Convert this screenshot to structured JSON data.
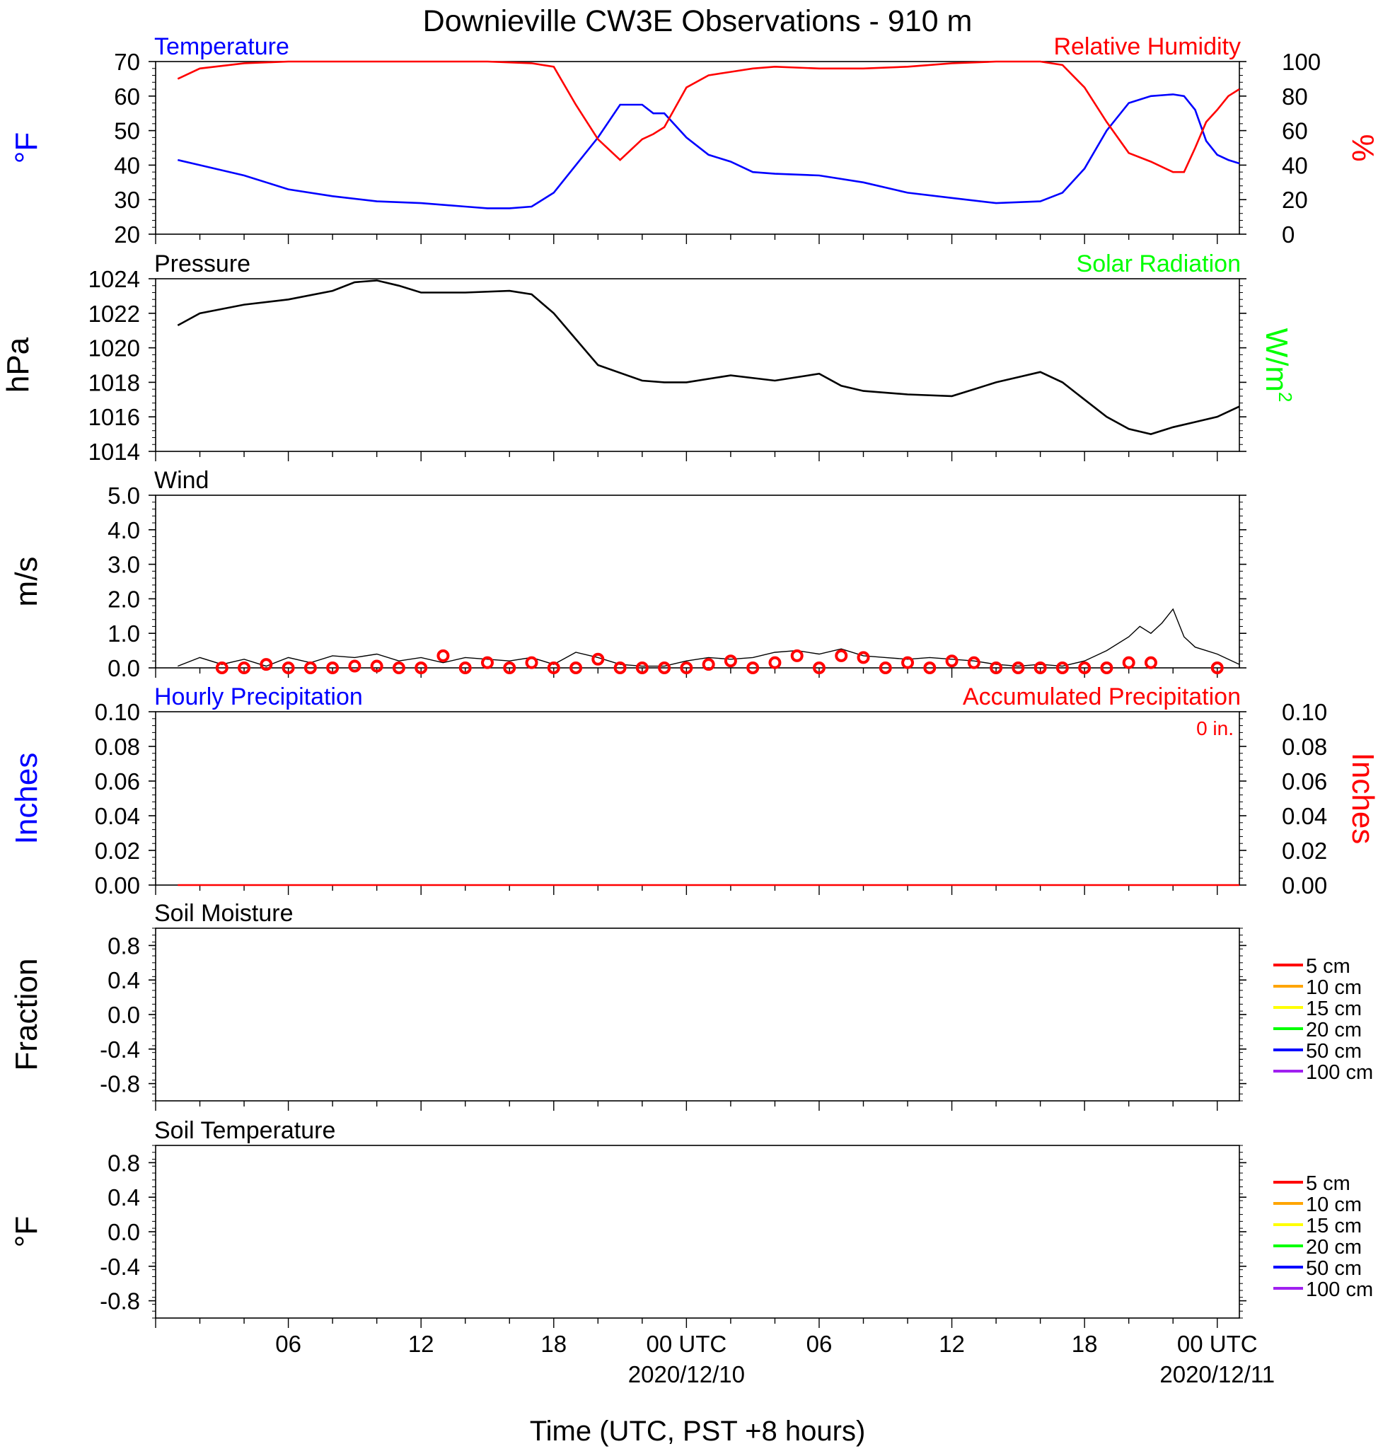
{
  "figure": {
    "title": "Downieville CW3E Observations - 910 m",
    "x_axis_label": "Time (UTC, PST +8 hours)",
    "x_tick_labels": [
      "06",
      "12",
      "18",
      "00 UTC",
      "06",
      "12",
      "18",
      "00 UTC"
    ],
    "x_date_labels": [
      "2020/12/10",
      "2020/12/11"
    ]
  },
  "colors": {
    "blue": "#0000ff",
    "red": "#ff0000",
    "green": "#00ff00",
    "black": "#000000"
  },
  "chart_data": [
    {
      "type": "line",
      "panel": "temperature-humidity",
      "left_title": "Temperature",
      "right_title": "Relative Humidity",
      "ylabel_left": "°F",
      "ylabel_right": "%",
      "ylim_left": [
        20,
        70
      ],
      "ylim_right": [
        0,
        100
      ],
      "yticks_left": [
        "70",
        "60",
        "50",
        "40",
        "30",
        "20"
      ],
      "yticks_right": [
        "100",
        "80",
        "60",
        "40",
        "20",
        "0"
      ],
      "x_hours": [
        1,
        2,
        4,
        6,
        8,
        10,
        12,
        14,
        15,
        16,
        17,
        18,
        19,
        20,
        21,
        22,
        22.5,
        23,
        24,
        25,
        26,
        27,
        28,
        30,
        32,
        34,
        36,
        38,
        40,
        41,
        42,
        43,
        44,
        45,
        46,
        46.5,
        47,
        47.5,
        48,
        48.5,
        49
      ],
      "series": [
        {
          "name": "Temperature",
          "axis": "left",
          "color": "#0000ff",
          "values": [
            41.5,
            40,
            37,
            33,
            31,
            29.5,
            29,
            28,
            27.5,
            27.5,
            28,
            32,
            40,
            48,
            57.5,
            57.5,
            55,
            55,
            48,
            43,
            41,
            38,
            37.5,
            37,
            35,
            32,
            30.5,
            29,
            29.5,
            32,
            39,
            50,
            58,
            60,
            60.5,
            60,
            56,
            47,
            43,
            41.5,
            40.5
          ]
        },
        {
          "name": "Relative Humidity",
          "axis": "right",
          "color": "#ff0000",
          "values": [
            90,
            96,
            99,
            100,
            100,
            100,
            100,
            100,
            100,
            99.5,
            99,
            97,
            75,
            55,
            43,
            55,
            58,
            62,
            85,
            92,
            94,
            96,
            97,
            96,
            96,
            97,
            99,
            100,
            100,
            98,
            85,
            65,
            47,
            42,
            36,
            36,
            50,
            65,
            72,
            80,
            84
          ]
        }
      ]
    },
    {
      "type": "line",
      "panel": "pressure",
      "left_title": "Pressure",
      "right_title": "Solar Radiation",
      "ylabel_left": "hPa",
      "ylabel_right": "W/m",
      "ylabel_right_sup": "2",
      "ylim_left": [
        1014,
        1024
      ],
      "yticks_left": [
        "1024",
        "1022",
        "1020",
        "1018",
        "1016",
        "1014"
      ],
      "x_hours": [
        1,
        2,
        4,
        6,
        8,
        9,
        10,
        11,
        12,
        14,
        16,
        17,
        18,
        19,
        20,
        22,
        23,
        24,
        26,
        28,
        30,
        31,
        32,
        34,
        36,
        37,
        38,
        39,
        40,
        41,
        42,
        43,
        44,
        45,
        46,
        47,
        48,
        49
      ],
      "series": [
        {
          "name": "Pressure",
          "axis": "left",
          "color": "#000000",
          "values": [
            1021.3,
            1022,
            1022.5,
            1022.8,
            1023.3,
            1023.8,
            1023.9,
            1023.6,
            1023.2,
            1023.2,
            1023.3,
            1023.1,
            1022,
            1020.5,
            1019,
            1018.1,
            1018,
            1018,
            1018.4,
            1018.1,
            1018.5,
            1017.8,
            1017.5,
            1017.3,
            1017.2,
            1017.6,
            1018,
            1018.3,
            1018.6,
            1018,
            1017,
            1016,
            1015.3,
            1015,
            1015.4,
            1015.7,
            1016,
            1016.6
          ]
        }
      ]
    },
    {
      "type": "line",
      "panel": "wind",
      "left_title": "Wind",
      "ylabel_left": "m/s",
      "ylim_left": [
        0,
        5
      ],
      "yticks_left": [
        "5.0",
        "4.0",
        "3.0",
        "2.0",
        "1.0",
        "0.0"
      ],
      "x_hours": [
        1,
        2,
        3,
        4,
        5,
        6,
        7,
        8,
        9,
        10,
        11,
        12,
        13,
        14,
        15,
        16,
        17,
        18,
        19,
        20,
        21,
        22,
        23,
        24,
        25,
        26,
        27,
        28,
        29,
        30,
        31,
        32,
        33,
        34,
        35,
        36,
        37,
        38,
        39,
        40,
        41,
        42,
        43,
        44,
        44.5,
        45,
        45.5,
        46,
        46.5,
        47,
        47.5,
        48,
        49
      ],
      "series": [
        {
          "name": "Wind speed",
          "axis": "left",
          "color": "#000000",
          "values": [
            0.05,
            0.3,
            0.1,
            0.25,
            0.05,
            0.3,
            0.15,
            0.35,
            0.3,
            0.4,
            0.2,
            0.3,
            0.15,
            0.3,
            0.25,
            0.2,
            0.3,
            0.1,
            0.45,
            0.3,
            0.1,
            0.05,
            0.05,
            0.2,
            0.3,
            0.25,
            0.3,
            0.45,
            0.5,
            0.4,
            0.55,
            0.35,
            0.3,
            0.25,
            0.3,
            0.25,
            0.2,
            0.1,
            0.05,
            0.1,
            0.05,
            0.2,
            0.5,
            0.9,
            1.2,
            1.0,
            1.3,
            1.7,
            0.9,
            0.6,
            0.5,
            0.4,
            0.1
          ]
        },
        {
          "name": "Hourly wind",
          "axis": "left",
          "color": "#ff0000",
          "marker": "circle",
          "x": [
            3,
            4,
            5,
            6,
            7,
            8,
            9,
            10,
            11,
            12,
            13,
            14,
            15,
            16,
            17,
            18,
            19,
            20,
            21,
            22,
            23,
            24,
            25,
            26,
            27,
            28,
            29,
            30,
            31,
            32,
            33,
            34,
            35,
            36,
            37,
            38,
            39,
            40,
            41,
            42,
            43,
            44,
            45,
            48
          ],
          "values": [
            0,
            0,
            0.1,
            0,
            0,
            0,
            0.05,
            0.05,
            0,
            0,
            0.35,
            0,
            0.15,
            0,
            0.15,
            0,
            0,
            0.25,
            0,
            0,
            0,
            0,
            0.1,
            0.2,
            0,
            0.15,
            0.35,
            0,
            0.35,
            0.3,
            0,
            0.15,
            0,
            0.2,
            0.15,
            0,
            0,
            0,
            0,
            0,
            0,
            0.15,
            0.15,
            0
          ]
        }
      ]
    },
    {
      "type": "line",
      "panel": "precipitation",
      "left_title": "Hourly Precipitation",
      "right_title": "Accumulated Precipitation",
      "annotation": "0 in.",
      "ylabel_left": "Inches",
      "ylabel_right": "Inches",
      "ylim_left": [
        0,
        0.1
      ],
      "ylim_right": [
        0,
        0.1
      ],
      "yticks_left": [
        "0.10",
        "0.08",
        "0.06",
        "0.04",
        "0.02",
        "0.00"
      ],
      "yticks_right": [
        "0.10",
        "0.08",
        "0.06",
        "0.04",
        "0.02",
        "0.00"
      ],
      "series": [
        {
          "name": "Accumulated Precipitation",
          "axis": "right",
          "color": "#ff0000",
          "x": [
            1,
            49
          ],
          "values": [
            0,
            0
          ]
        }
      ]
    },
    {
      "type": "line",
      "panel": "soil-moisture",
      "left_title": "Soil Moisture",
      "ylabel_left": "Fraction",
      "ylim_left": [
        -1,
        1
      ],
      "yticks_left": [
        "0.8",
        "0.4",
        "0.0",
        "-0.4",
        "-0.8"
      ],
      "legend": [
        {
          "label": "5 cm",
          "color": "#ff0000"
        },
        {
          "label": "10 cm",
          "color": "#ffa500"
        },
        {
          "label": "15 cm",
          "color": "#ffff00"
        },
        {
          "label": "20 cm",
          "color": "#00ff00"
        },
        {
          "label": "50 cm",
          "color": "#0000ff"
        },
        {
          "label": "100 cm",
          "color": "#a020f0"
        }
      ],
      "series": []
    },
    {
      "type": "line",
      "panel": "soil-temperature",
      "left_title": "Soil Temperature",
      "ylabel_left": "°F",
      "ylim_left": [
        -1,
        1
      ],
      "yticks_left": [
        "0.8",
        "0.4",
        "0.0",
        "-0.4",
        "-0.8"
      ],
      "legend": [
        {
          "label": "5 cm",
          "color": "#ff0000"
        },
        {
          "label": "10 cm",
          "color": "#ffa500"
        },
        {
          "label": "15 cm",
          "color": "#ffff00"
        },
        {
          "label": "20 cm",
          "color": "#00ff00"
        },
        {
          "label": "50 cm",
          "color": "#0000ff"
        },
        {
          "label": "100 cm",
          "color": "#a020f0"
        }
      ],
      "series": []
    }
  ]
}
